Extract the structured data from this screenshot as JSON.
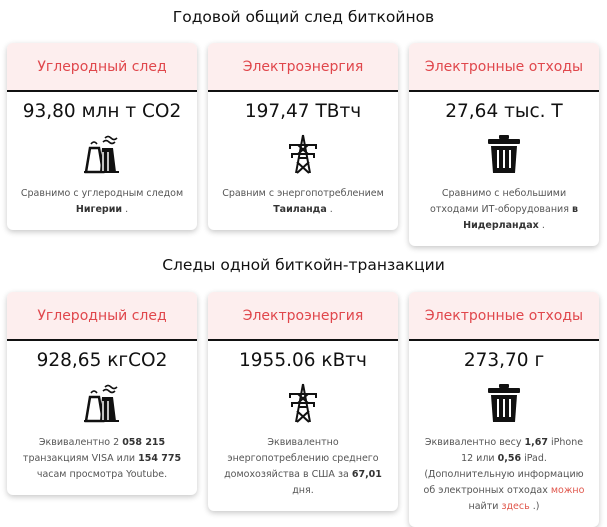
{
  "annual": {
    "title": "Годовой общий след биткойнов",
    "cards": [
      {
        "header": "Углеродный след",
        "value": "93,80 млн т CO2",
        "icon": "power-plant-icon",
        "desc": [
          {
            "t": "Сравнимо с углеродным следом "
          },
          {
            "t": "Нигерии",
            "b": 1
          },
          {
            "t": " ."
          }
        ]
      },
      {
        "header": "Электроэнергия",
        "value": "197,47 ТВтч",
        "icon": "power-tower-icon",
        "desc": [
          {
            "t": "Сравним с энергопотреблением "
          },
          {
            "t": "Таиланда",
            "b": 1
          },
          {
            "t": " ."
          }
        ]
      },
      {
        "header": "Электронные отходы",
        "value": "27,64 тыс. Т",
        "icon": "trash-icon",
        "desc": [
          {
            "t": "Сравнимо с небольшими отходами ИТ-оборудования "
          },
          {
            "t": "в Нидерландах",
            "b": 1
          },
          {
            "t": " ."
          }
        ]
      }
    ]
  },
  "transaction": {
    "title": "Следы одной биткойн-транзакции",
    "cards": [
      {
        "header": "Углеродный след",
        "value": "928,65 кгCO2",
        "icon": "power-plant-icon",
        "desc": [
          {
            "t": "Эквивалентно 2 "
          },
          {
            "t": "058 215",
            "b": 1
          },
          {
            "t": " транзакциям VISA или "
          },
          {
            "t": "154 775",
            "b": 1
          },
          {
            "t": " часам просмотра Youtube."
          }
        ]
      },
      {
        "header": "Электроэнергия",
        "value": "1955.06 кВтч",
        "icon": "power-tower-icon",
        "desc": [
          {
            "t": "Эквивалентно энергопотреблению среднего домохозяйства в США за "
          },
          {
            "t": "67,01",
            "b": 1
          },
          {
            "t": " дня."
          }
        ]
      },
      {
        "header": "Электронные отходы",
        "value": "273,70 г",
        "icon": "trash-icon",
        "desc": [
          {
            "t": "Эквивалентно весу "
          },
          {
            "t": "1,67",
            "b": 1
          },
          {
            "t": " iPhone 12 или "
          },
          {
            "t": "0,56",
            "b": 1
          },
          {
            "t": " iPad. (Дополнительную информацию об электронных отходах "
          },
          {
            "t": "можно",
            "a": 1
          },
          {
            "t": " найти "
          },
          {
            "t": "здесь",
            "a": 1
          },
          {
            "t": " .)"
          }
        ]
      }
    ]
  },
  "colors": {
    "header_bg": "#fdeeee",
    "header_text": "#e0474c",
    "link": "#e0574c"
  }
}
